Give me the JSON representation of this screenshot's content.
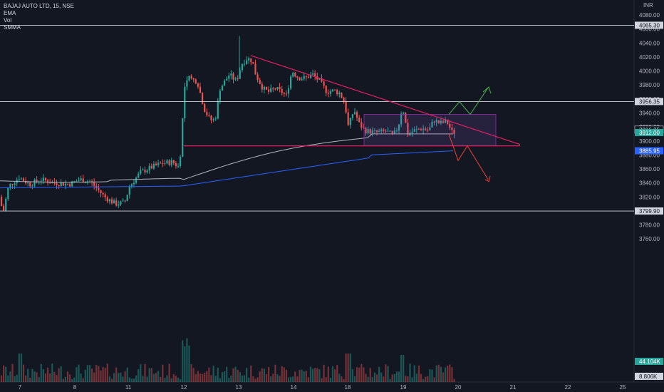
{
  "legend": {
    "symbol": "BAJAJ AUTO LTD, 15, NSE",
    "indicators": [
      "EMA",
      "Vol",
      "SMMA"
    ]
  },
  "currency": "INR",
  "colors": {
    "background": "#131722",
    "up": "#26a69a",
    "down": "#ef5350",
    "trendline": "#e91e63",
    "ema": "#b2b5be",
    "smma": "#2962ff",
    "arrow_up": "#4caf50",
    "arrow_down": "#f44336"
  },
  "chart_data": {
    "type": "candlestick",
    "x_ticks": [
      "7",
      "8",
      "11",
      "12",
      "13",
      "14",
      "18",
      "19",
      "20",
      "21",
      "22",
      "25"
    ],
    "y_ticks": [
      3760,
      3780,
      3800,
      3820,
      3840,
      3860,
      3880,
      3900,
      3920,
      3940,
      3960,
      3980,
      4000,
      4020,
      4040,
      4060,
      4080
    ],
    "ylim": [
      3752,
      4088
    ],
    "horizontal_levels": [
      {
        "label": "4065.30",
        "value": 4065.3
      },
      {
        "label": "3956.35",
        "value": 3956.35
      },
      {
        "label": "3799.90",
        "value": 3799.9
      }
    ],
    "price_labels": [
      {
        "label": "3916.25",
        "value": 3916.25,
        "style": "outline"
      },
      {
        "label": "3912.00",
        "value": 3912.0,
        "style": "green"
      },
      {
        "label": "3885.95",
        "value": 3885.95,
        "style": "blue"
      },
      {
        "label": "44.104K",
        "value": 3756,
        "style": "volume"
      },
      {
        "label": "8.806K",
        "value": 3750,
        "style": "plain"
      }
    ],
    "key_closes": [
      {
        "day": "7",
        "open": 3822,
        "close": 3848
      },
      {
        "day": "11",
        "open": 3832,
        "close": 3862
      },
      {
        "day": "12",
        "open": 3870,
        "close": 3985
      },
      {
        "day": "13",
        "high": 4050,
        "close": 4015
      },
      {
        "day": "18",
        "low": 3905,
        "close": 3915
      },
      {
        "day": "19",
        "high": 3955,
        "close": 3922
      },
      {
        "day": "20",
        "close": 3912
      }
    ],
    "consolidation_box": {
      "low": 3893,
      "high": 3938
    },
    "support_line": 3893
  }
}
